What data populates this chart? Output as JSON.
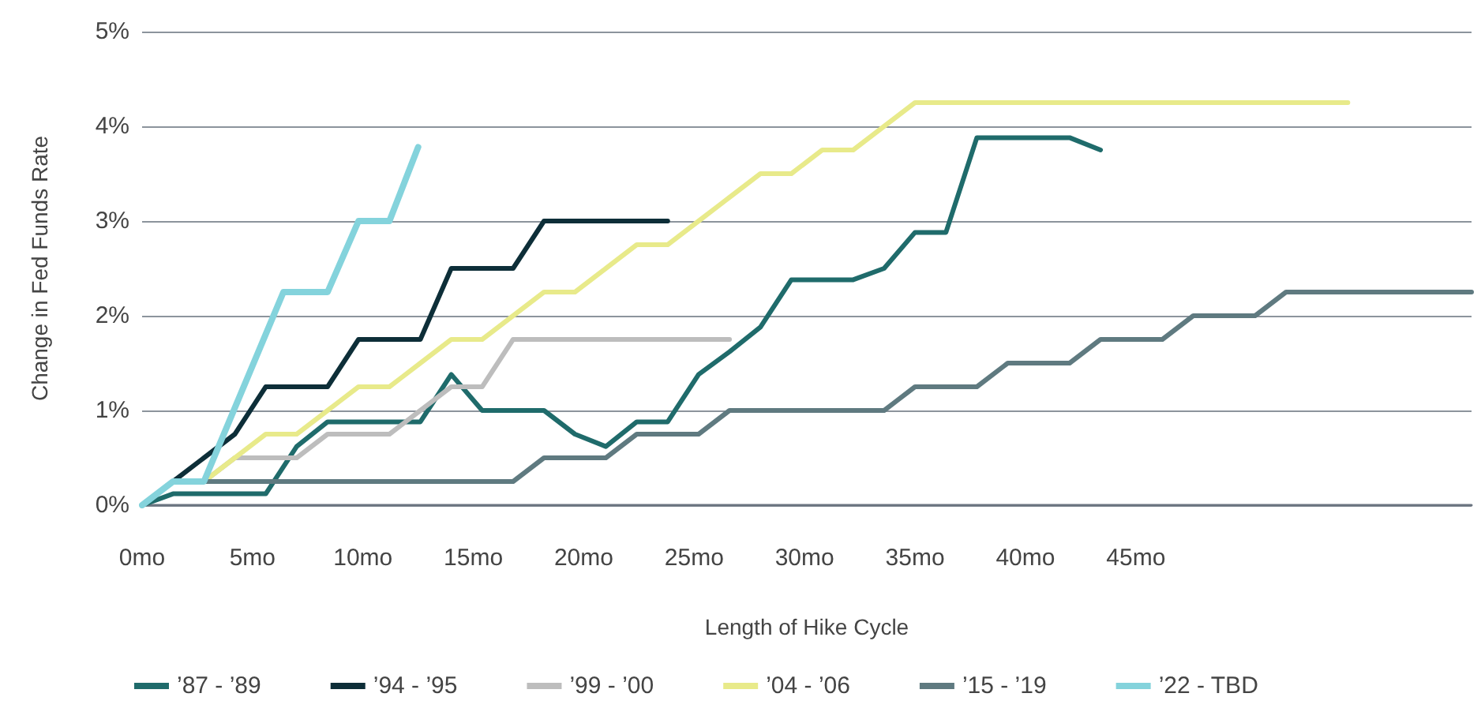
{
  "chart_data": {
    "type": "line",
    "xlabel": "Length of Hike Cycle",
    "ylabel": "Change in Fed Funds Rate",
    "x": [
      0,
      1.4,
      2.8,
      4.2,
      5.6,
      7,
      8.4,
      9.8,
      11.2,
      12.6,
      14,
      15.4,
      16.8,
      18.2,
      19.6,
      21,
      22.4,
      23.8,
      25.2,
      26.6,
      28,
      29.4,
      30.8,
      32.2,
      33.6,
      35,
      36.4,
      37.8,
      39.2,
      40.6,
      42,
      43.4,
      44.8,
      46.2,
      47.6,
      49,
      50.4,
      51.8,
      53.2,
      54.6,
      56,
      57.4,
      58.8,
      60.2
    ],
    "series": [
      {
        "name": "’87 - ’89",
        "color": "#1f6b6b",
        "values": [
          0,
          0.12,
          0.12,
          0.12,
          0.12,
          0.62,
          0.88,
          0.88,
          0.88,
          0.88,
          1.38,
          1.0,
          1.0,
          1.0,
          0.75,
          0.62,
          0.88,
          0.88,
          1.38,
          1.62,
          1.88,
          2.38,
          2.38,
          2.38,
          2.5,
          2.88,
          2.88,
          3.88,
          3.88,
          3.88,
          3.88,
          3.75,
          null,
          null,
          null,
          null,
          null,
          null,
          null,
          null,
          null,
          null,
          null,
          null
        ]
      },
      {
        "name": "’94 - ’95",
        "color": "#0d2e38",
        "values": [
          0,
          0.25,
          0.5,
          0.75,
          1.25,
          1.25,
          1.25,
          1.75,
          1.75,
          1.75,
          2.5,
          2.5,
          2.5,
          3.0,
          3.0,
          3.0,
          3.0,
          3.0,
          null,
          null,
          null,
          null,
          null,
          null,
          null,
          null,
          null,
          null,
          null,
          null,
          null,
          null,
          null,
          null,
          null,
          null,
          null,
          null,
          null,
          null,
          null,
          null,
          null,
          null
        ]
      },
      {
        "name": "’99 - ’00",
        "color": "#bdbdbd",
        "values": [
          0,
          0.25,
          0.25,
          0.5,
          0.5,
          0.5,
          0.75,
          0.75,
          0.75,
          1.0,
          1.25,
          1.25,
          1.75,
          1.75,
          1.75,
          1.75,
          1.75,
          1.75,
          1.75,
          1.75,
          null,
          null,
          null,
          null,
          null,
          null,
          null,
          null,
          null,
          null,
          null,
          null,
          null,
          null,
          null,
          null,
          null,
          null,
          null,
          null,
          null,
          null,
          null,
          null
        ]
      },
      {
        "name": "’04 - ’06",
        "color": "#e8ea8a",
        "values": [
          0,
          0.25,
          0.25,
          0.5,
          0.75,
          0.75,
          1.0,
          1.25,
          1.25,
          1.5,
          1.75,
          1.75,
          2.0,
          2.25,
          2.25,
          2.5,
          2.75,
          2.75,
          3.0,
          3.25,
          3.5,
          3.5,
          3.75,
          3.75,
          4.0,
          4.25,
          4.25,
          4.25,
          4.25,
          4.25,
          4.25,
          4.25,
          4.25,
          4.25,
          4.25,
          4.25,
          4.25,
          4.25,
          4.25,
          4.25,
          null,
          null,
          null,
          null
        ]
      },
      {
        "name": "’15 - ’19",
        "color": "#5f7a80",
        "values": [
          0,
          0.25,
          0.25,
          0.25,
          0.25,
          0.25,
          0.25,
          0.25,
          0.25,
          0.25,
          0.25,
          0.25,
          0.25,
          0.5,
          0.5,
          0.5,
          0.75,
          0.75,
          0.75,
          1.0,
          1.0,
          1.0,
          1.0,
          1.0,
          1.0,
          1.25,
          1.25,
          1.25,
          1.5,
          1.5,
          1.5,
          1.75,
          1.75,
          1.75,
          2.0,
          2.0,
          2.0,
          2.25,
          2.25,
          2.25,
          2.25,
          2.25,
          2.25,
          2.25
        ]
      },
      {
        "name": "’22 - TBD",
        "color": "#84d3dc",
        "x": [
          0,
          1.4,
          2.8,
          6.4,
          8.4,
          9.8,
          11.2,
          12.5
        ],
        "values": [
          0,
          0.25,
          0.25,
          2.25,
          2.25,
          3.0,
          3.0,
          3.78
        ]
      }
    ],
    "xlim": [
      0,
      60.2
    ],
    "xticks": [
      {
        "value": 0,
        "label": "0mo"
      },
      {
        "value": 5,
        "label": "5mo"
      },
      {
        "value": 10,
        "label": "10mo"
      },
      {
        "value": 15,
        "label": "15mo"
      },
      {
        "value": 20,
        "label": "20mo"
      },
      {
        "value": 25,
        "label": "25mo"
      },
      {
        "value": 30,
        "label": "30mo"
      },
      {
        "value": 35,
        "label": "35mo"
      },
      {
        "value": 40,
        "label": "40mo"
      },
      {
        "value": 45,
        "label": "45mo"
      }
    ],
    "ylim": [
      0,
      5
    ],
    "yticks": [
      {
        "value": 0,
        "label": "0%"
      },
      {
        "value": 1,
        "label": "1%"
      },
      {
        "value": 2,
        "label": "2%"
      },
      {
        "value": 3,
        "label": "3%"
      },
      {
        "value": 4,
        "label": "4%"
      },
      {
        "value": 5,
        "label": "5%"
      }
    ],
    "grid": "y",
    "legend": "bottom",
    "marker": "none",
    "line_style": "solid"
  }
}
